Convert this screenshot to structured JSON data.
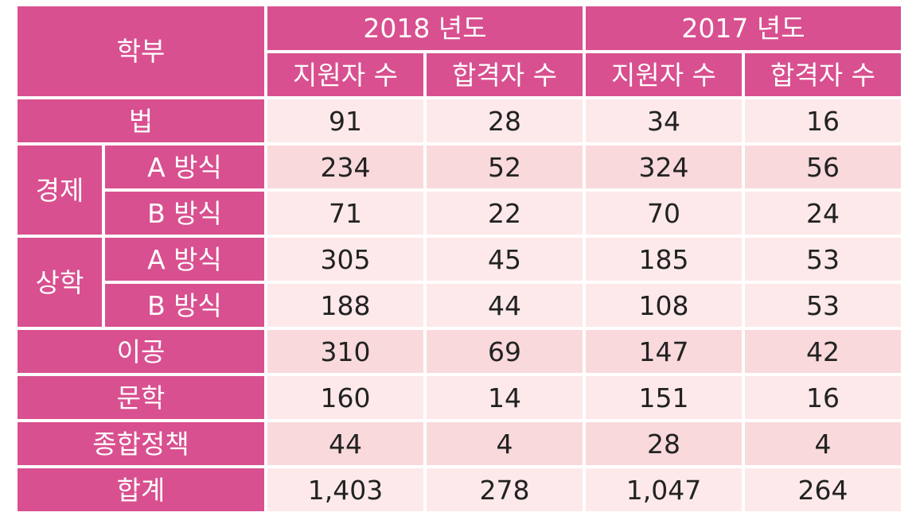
{
  "header": {
    "dept_label": "학부",
    "years": [
      "2018 년도",
      "2017 년도"
    ],
    "applicants_label": "지원자 수",
    "passed_label": "합격자 수"
  },
  "rows": [
    {
      "dept": "법",
      "y2018_applicants": "91",
      "y2018_passed": "28",
      "y2017_applicants": "34",
      "y2017_passed": "16"
    },
    {
      "group": "경제",
      "dept": "A 방식",
      "y2018_applicants": "234",
      "y2018_passed": "52",
      "y2017_applicants": "324",
      "y2017_passed": "56"
    },
    {
      "dept": "B 방식",
      "y2018_applicants": "71",
      "y2018_passed": "22",
      "y2017_applicants": "70",
      "y2017_passed": "24"
    },
    {
      "group": "상학",
      "dept": "A 방식",
      "y2018_applicants": "305",
      "y2018_passed": "45",
      "y2017_applicants": "185",
      "y2017_passed": "53"
    },
    {
      "dept": "B 방식",
      "y2018_applicants": "188",
      "y2018_passed": "44",
      "y2017_applicants": "108",
      "y2017_passed": "53"
    },
    {
      "dept": "이공",
      "y2018_applicants": "310",
      "y2018_passed": "69",
      "y2017_applicants": "147",
      "y2017_passed": "42"
    },
    {
      "dept": "문학",
      "y2018_applicants": "160",
      "y2018_passed": "14",
      "y2017_applicants": "151",
      "y2017_passed": "16"
    },
    {
      "dept": "종합정책",
      "y2018_applicants": "44",
      "y2018_passed": "4",
      "y2017_applicants": "28",
      "y2017_passed": "4"
    },
    {
      "dept": "합계",
      "y2018_applicants": "1,403",
      "y2018_passed": "278",
      "y2017_applicants": "1,047",
      "y2017_passed": "264"
    }
  ],
  "colors": {
    "header_bg": "#d8508f",
    "header_text": "#ffffff",
    "row_light": "#fde9ea",
    "row_dark": "#f9d9dc"
  }
}
